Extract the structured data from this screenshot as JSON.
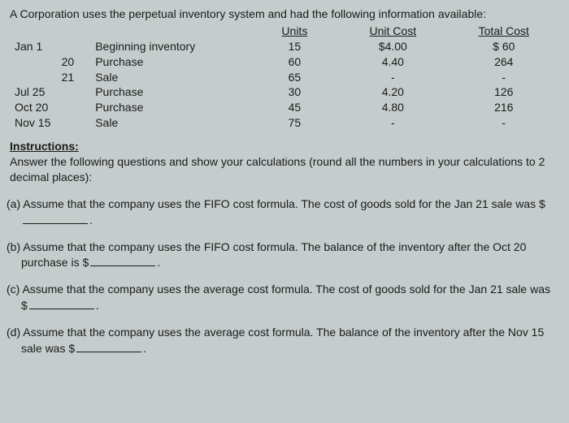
{
  "intro": "A Corporation uses the perpetual inventory system and had the following information available:",
  "table": {
    "headers": {
      "units": "Units",
      "unit_cost": "Unit Cost",
      "total_cost": "Total Cost"
    },
    "rows": [
      {
        "date": "Jan  1",
        "desc": "Beginning inventory",
        "units": "15",
        "unit_cost": "$4.00",
        "total": "$ 60"
      },
      {
        "date": "20",
        "desc": "Purchase",
        "units": "60",
        "unit_cost": "4.40",
        "total": "264"
      },
      {
        "date": "21",
        "desc": "Sale",
        "units": "65",
        "unit_cost": "-",
        "total": "-"
      },
      {
        "date": "Jul 25",
        "desc": "Purchase",
        "units": "30",
        "unit_cost": "4.20",
        "total": "126"
      },
      {
        "date": "Oct 20",
        "desc": "Purchase",
        "units": "45",
        "unit_cost": "4.80",
        "total": "216"
      },
      {
        "date": "Nov 15",
        "desc": "Sale",
        "units": "75",
        "unit_cost": "-",
        "total": "-"
      }
    ]
  },
  "instructions": {
    "header": "Instructions:",
    "body": "Answer the following questions and show your calculations (round all the numbers in your calculations to 2 decimal places):"
  },
  "questions": {
    "a": {
      "label": "(a)",
      "text_before": "Assume that the company uses the FIFO cost formula. The cost of goods sold for the Jan 21 sale was $",
      "text_after": "."
    },
    "b": {
      "label": "(b)",
      "text_before": "Assume that the company uses the FIFO cost formula. The balance of the inventory after the Oct 20 purchase is $",
      "text_after": "."
    },
    "c": {
      "label": "(c)",
      "text_before": "Assume that the company uses the average cost formula. The cost of goods sold for the Jan 21 sale was $",
      "text_after": "."
    },
    "d": {
      "label": "(d)",
      "text_before": "Assume that the company uses the average cost formula. The balance of the inventory after the Nov 15 sale was $",
      "text_after": "."
    }
  }
}
